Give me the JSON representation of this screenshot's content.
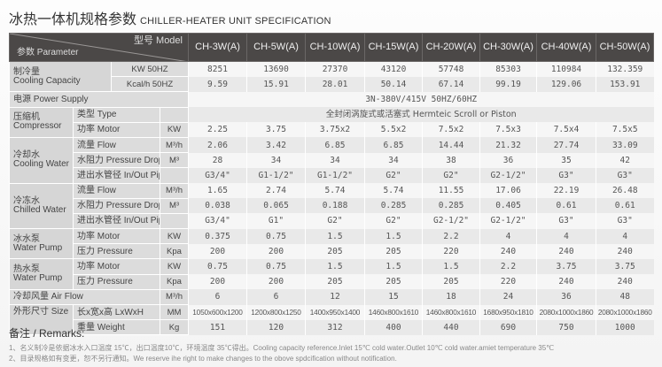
{
  "title_cn": "冰热一体机规格参数",
  "title_en": "CHILLER-HEATER UNIT SPECIFICATION",
  "header": {
    "model_label": "型号 Model",
    "param_label": "参数 Parameter"
  },
  "models": [
    "CH-3W(A)",
    "CH-5W(A)",
    "CH-10W(A)",
    "CH-15W(A)",
    "CH-20W(A)",
    "CH-30W(A)",
    "CH-40W(A)",
    "CH-50W(A)"
  ],
  "cooling_capacity": {
    "label_cn": "制冷量",
    "label_en": "Cooling Capacity",
    "rows": [
      {
        "unit": "KW 50HZ",
        "values": [
          "8251",
          "13690",
          "27370",
          "43120",
          "57748",
          "85303",
          "110984",
          "132.359"
        ]
      },
      {
        "unit": "Kcal/h 50HZ",
        "values": [
          "9.59",
          "15.91",
          "28.01",
          "50.14",
          "67.14",
          "99.19",
          "129.06",
          "153.91"
        ]
      }
    ]
  },
  "power_supply": {
    "label": "电源 Power Supply",
    "value": "3N-380V/415V  50HZ/60HZ"
  },
  "compressor": {
    "label_cn": "压缩机",
    "label_en": "Compressor",
    "type": {
      "label": "类型 Type",
      "value": "全封闭涡旋式或活塞式 Hermteic Scroll or Piston"
    },
    "motor": {
      "label": "功率 Motor",
      "unit": "KW",
      "values": [
        "2.25",
        "3.75",
        "3.75x2",
        "5.5x2",
        "7.5x2",
        "7.5x3",
        "7.5x4",
        "7.5x5"
      ]
    }
  },
  "cooling_water": {
    "label_cn": "冷却水",
    "label_en": "Cooling Water",
    "rows": [
      {
        "label": "流量 Flow",
        "unit": "M³/h",
        "values": [
          "2.06",
          "3.42",
          "6.85",
          "6.85",
          "14.44",
          "21.32",
          "27.74",
          "33.09"
        ]
      },
      {
        "label": "水阻力 Pressure Drop",
        "unit": "M³",
        "values": [
          "28",
          "34",
          "34",
          "34",
          "38",
          "36",
          "35",
          "42"
        ]
      },
      {
        "label": "进出水管径 In/Out Pipe Size",
        "unit": "",
        "values": [
          "G3/4\"",
          "G1-1/2\"",
          "G1-1/2\"",
          "G2\"",
          "G2\"",
          "G2-1/2\"",
          "G3\"",
          "G3\""
        ]
      }
    ]
  },
  "chilled_water": {
    "label_cn": "冷冻水",
    "label_en": "Chilled Water",
    "rows": [
      {
        "label": "流量 Flow",
        "unit": "M³/h",
        "values": [
          "1.65",
          "2.74",
          "5.74",
          "5.74",
          "11.55",
          "17.06",
          "22.19",
          "26.48"
        ]
      },
      {
        "label": "水阻力 Pressure Drop",
        "unit": "M³",
        "values": [
          "0.038",
          "0.065",
          "0.188",
          "0.285",
          "0.285",
          "0.405",
          "0.61",
          "0.61"
        ]
      },
      {
        "label": "进出水管径 In/Out Pipe Size",
        "unit": "",
        "values": [
          "G3/4\"",
          "G1\"",
          "G2\"",
          "G2\"",
          "G2-1/2\"",
          "G2-1/2\"",
          "G3\"",
          "G3\""
        ]
      }
    ]
  },
  "ice_water_pump": {
    "label_cn": "冰水泵",
    "label_en": "Water Pump",
    "rows": [
      {
        "label": "功率 Motor",
        "unit": "KW",
        "values": [
          "0.375",
          "0.75",
          "1.5",
          "1.5",
          "2.2",
          "4",
          "4",
          "4"
        ]
      },
      {
        "label": "压力 Pressure",
        "unit": "Kpa",
        "values": [
          "200",
          "200",
          "205",
          "205",
          "220",
          "240",
          "240",
          "240"
        ]
      }
    ]
  },
  "hot_water_pump": {
    "label_cn": "热水泵",
    "label_en": "Water Pump",
    "rows": [
      {
        "label": "功率 Motor",
        "unit": "KW",
        "values": [
          "0.75",
          "0.75",
          "1.5",
          "1.5",
          "1.5",
          "2.2",
          "3.75",
          "3.75"
        ]
      },
      {
        "label": "压力 Pressure",
        "unit": "Kpa",
        "values": [
          "200",
          "200",
          "205",
          "205",
          "205",
          "220",
          "240",
          "240"
        ]
      }
    ]
  },
  "air_flow": {
    "label": "冷却风量 Air Flow",
    "unit": "M³/h",
    "values": [
      "6",
      "6",
      "12",
      "15",
      "18",
      "24",
      "36",
      "48"
    ]
  },
  "size": {
    "label": "外形尺寸 Size",
    "sub_label": "长x宽x高 LxWxH",
    "unit": "MM",
    "values": [
      "1050x600x1200",
      "1200x800x1250",
      "1400x950x1400",
      "1460x800x1610",
      "1460x800x1610",
      "1680x950x1810",
      "2080x1000x1860",
      "2080x1000x1860"
    ]
  },
  "weight": {
    "label": "重量 Weight",
    "unit": "Kg",
    "values": [
      "151",
      "120",
      "312",
      "400",
      "440",
      "690",
      "750",
      "1000"
    ]
  },
  "remarks": {
    "title": "备注 / Remarks:",
    "lines": [
      "1、名义制冷是依据冰水入口温度 15℃，出口温度10℃，环境温度 35℃得出。Cooling capacity reference.Inlet 15℃ cold water.Outlet 10℃ cold water.amiet temperature 35℃",
      "2、目录规格如有变更，恕不另行通知。We reserve ihe right to make changes to the obove spdcification without notification."
    ]
  }
}
